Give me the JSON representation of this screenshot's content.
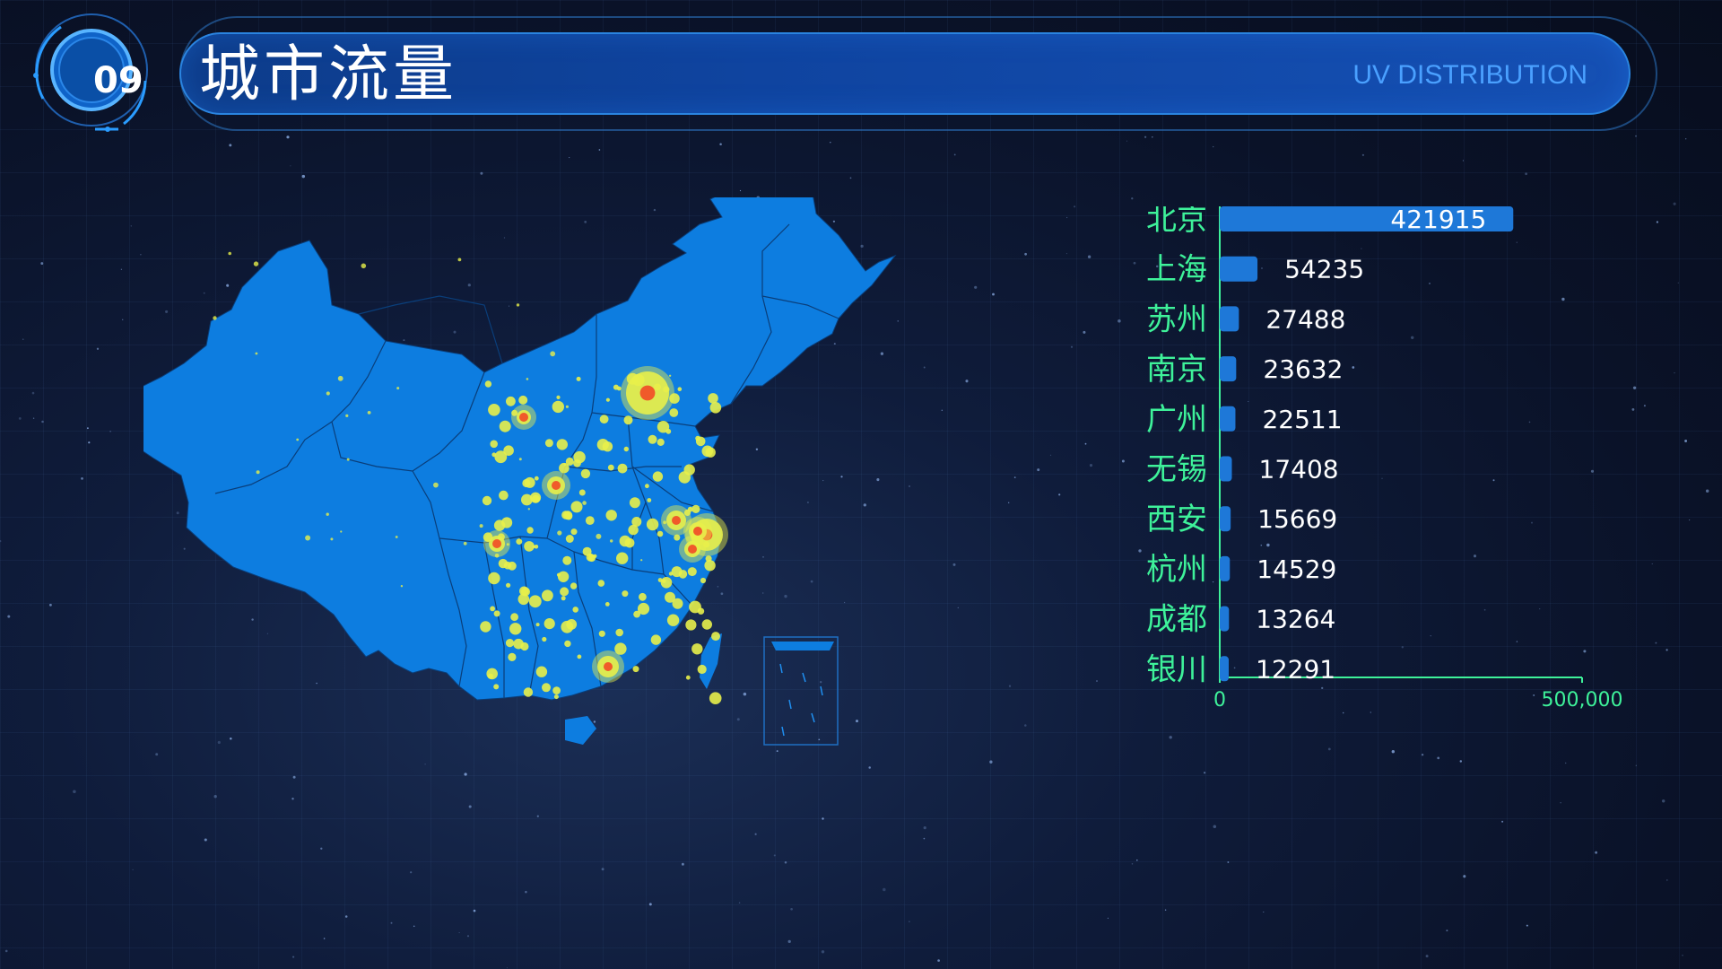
{
  "header": {
    "badge": "09",
    "title": "城市流量",
    "subtitle": "UV DISTRIBUTION"
  },
  "colors": {
    "map_fill": "#0d7de0",
    "scatter": "#e8f04a",
    "hotspot": "#f05a2a",
    "bar": "#1e78d8",
    "axis": "#3ef29a",
    "label": "#3ef29a"
  },
  "chart_data": {
    "type": "bar",
    "orientation": "horizontal",
    "title": "",
    "xlabel": "",
    "ylabel": "",
    "categories": [
      "北京",
      "上海",
      "苏州",
      "南京",
      "广州",
      "无锡",
      "西安",
      "杭州",
      "成都",
      "银川"
    ],
    "values": [
      421915,
      54235,
      27488,
      23632,
      22511,
      17408,
      15669,
      14529,
      13264,
      12291
    ],
    "value_labels": [
      "421915",
      "54235",
      "27488",
      "23632",
      "22511",
      "17408",
      "15669",
      "14529",
      "13264",
      "12291"
    ],
    "xlim": [
      0,
      500000
    ],
    "x_ticks": [
      "0",
      "500,000"
    ],
    "grid": false
  }
}
